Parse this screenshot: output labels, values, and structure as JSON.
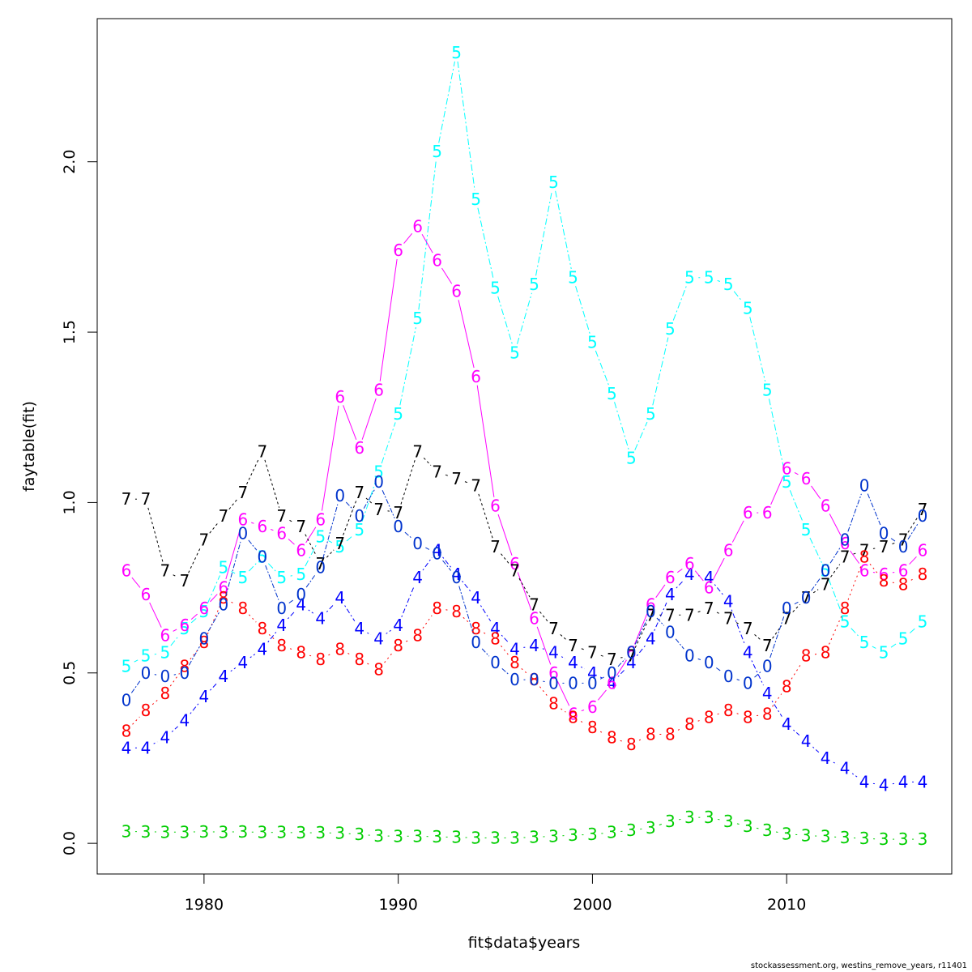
{
  "chart_data": {
    "type": "line",
    "xlabel": "fit$data$years",
    "ylabel": "faytable(fit)",
    "xlim": [
      1974.5,
      2018.5
    ],
    "ylim": [
      -0.09,
      2.42
    ],
    "x_ticks": [
      "1980",
      "1990",
      "2000",
      "2010"
    ],
    "y_ticks": [
      "0.0",
      "0.5",
      "1.0",
      "1.5",
      "2.0"
    ],
    "x": [
      1976,
      1977,
      1978,
      1979,
      1980,
      1981,
      1982,
      1983,
      1984,
      1985,
      1986,
      1987,
      1988,
      1989,
      1990,
      1991,
      1992,
      1993,
      1994,
      1995,
      1996,
      1997,
      1998,
      1999,
      2000,
      2001,
      2002,
      2003,
      2004,
      2005,
      2006,
      2007,
      2008,
      2009,
      2010,
      2011,
      2012,
      2013,
      2014,
      2015,
      2016,
      2017
    ],
    "series": [
      {
        "symbol": "3",
        "color": "#00cd00",
        "dash": "6 4",
        "values": [
          0.035,
          0.034,
          0.033,
          0.033,
          0.034,
          0.033,
          0.034,
          0.032,
          0.032,
          0.031,
          0.031,
          0.03,
          0.026,
          0.022,
          0.021,
          0.021,
          0.019,
          0.018,
          0.016,
          0.016,
          0.016,
          0.018,
          0.021,
          0.024,
          0.026,
          0.032,
          0.038,
          0.046,
          0.064,
          0.076,
          0.076,
          0.064,
          0.05,
          0.038,
          0.028,
          0.023,
          0.02,
          0.017,
          0.014,
          0.012,
          0.012,
          0.012
        ]
      },
      {
        "symbol": "4",
        "color": "#0000ff",
        "dash": "2 3 6 3",
        "values": [
          0.28,
          0.28,
          0.31,
          0.36,
          0.43,
          0.49,
          0.53,
          0.57,
          0.64,
          0.7,
          0.66,
          0.72,
          0.63,
          0.6,
          0.64,
          0.78,
          0.86,
          0.79,
          0.72,
          0.63,
          0.57,
          0.58,
          0.56,
          0.53,
          0.5,
          0.47,
          0.53,
          0.6,
          0.73,
          0.79,
          0.78,
          0.71,
          0.56,
          0.44,
          0.35,
          0.3,
          0.25,
          0.22,
          0.18,
          0.17,
          0.18,
          0.18
        ]
      },
      {
        "symbol": "5",
        "color": "#00ffff",
        "dash": "8 3 2 3",
        "values": [
          0.52,
          0.55,
          0.56,
          0.63,
          0.68,
          0.81,
          0.78,
          0.84,
          0.78,
          0.79,
          0.9,
          0.87,
          0.92,
          1.09,
          1.26,
          1.54,
          2.03,
          2.32,
          1.89,
          1.63,
          1.44,
          1.64,
          1.94,
          1.66,
          1.47,
          1.32,
          1.13,
          1.26,
          1.51,
          1.66,
          1.66,
          1.64,
          1.57,
          1.33,
          1.06,
          0.92,
          0.8,
          0.65,
          0.59,
          0.56,
          0.6,
          0.65
        ]
      },
      {
        "symbol": "6",
        "color": "#ff00ff",
        "dash": "",
        "values": [
          0.8,
          0.73,
          0.61,
          0.64,
          0.69,
          0.75,
          0.95,
          0.93,
          0.91,
          0.86,
          0.95,
          1.31,
          1.16,
          1.33,
          1.74,
          1.81,
          1.71,
          1.62,
          1.37,
          0.99,
          0.82,
          0.66,
          0.5,
          0.38,
          0.4,
          0.47,
          0.56,
          0.7,
          0.78,
          0.82,
          0.75,
          0.86,
          0.97,
          0.97,
          1.1,
          1.07,
          0.99,
          0.88,
          0.8,
          0.79,
          0.8,
          0.86
        ]
      },
      {
        "symbol": "7",
        "color": "#000000",
        "dash": "3 3",
        "values": [
          1.01,
          1.01,
          0.8,
          0.77,
          0.89,
          0.96,
          1.03,
          1.15,
          0.96,
          0.93,
          0.82,
          0.88,
          1.03,
          0.98,
          0.97,
          1.15,
          1.09,
          1.07,
          1.05,
          0.87,
          0.8,
          0.7,
          0.63,
          0.58,
          0.56,
          0.54,
          0.55,
          0.67,
          0.67,
          0.67,
          0.69,
          0.66,
          0.63,
          0.58,
          0.66,
          0.72,
          0.76,
          0.84,
          0.86,
          0.87,
          0.89,
          0.98
        ]
      },
      {
        "symbol": "8",
        "color": "#ff0000",
        "dash": "2 4",
        "values": [
          0.33,
          0.39,
          0.44,
          0.52,
          0.59,
          0.72,
          0.69,
          0.63,
          0.58,
          0.56,
          0.54,
          0.57,
          0.54,
          0.51,
          0.58,
          0.61,
          0.69,
          0.68,
          0.63,
          0.6,
          0.53,
          0.48,
          0.41,
          0.37,
          0.34,
          0.31,
          0.29,
          0.32,
          0.32,
          0.35,
          0.37,
          0.39,
          0.37,
          0.38,
          0.46,
          0.55,
          0.56,
          0.69,
          0.84,
          0.77,
          0.76,
          0.79
        ]
      },
      {
        "symbol": "0",
        "color": "#0033cc",
        "dash": "6 2 2 2",
        "values": [
          0.42,
          0.5,
          0.49,
          0.5,
          0.6,
          0.7,
          0.91,
          0.84,
          0.69,
          0.73,
          0.81,
          1.02,
          0.96,
          1.06,
          0.93,
          0.88,
          0.85,
          0.78,
          0.59,
          0.53,
          0.48,
          0.48,
          0.47,
          0.47,
          0.47,
          0.5,
          0.56,
          0.68,
          0.62,
          0.55,
          0.53,
          0.49,
          0.47,
          0.52,
          0.69,
          0.72,
          0.8,
          0.89,
          1.05,
          0.91,
          0.87,
          0.96
        ]
      }
    ]
  },
  "footer": {
    "note": "stockassessment.org, westins_remove_years, r11401"
  }
}
